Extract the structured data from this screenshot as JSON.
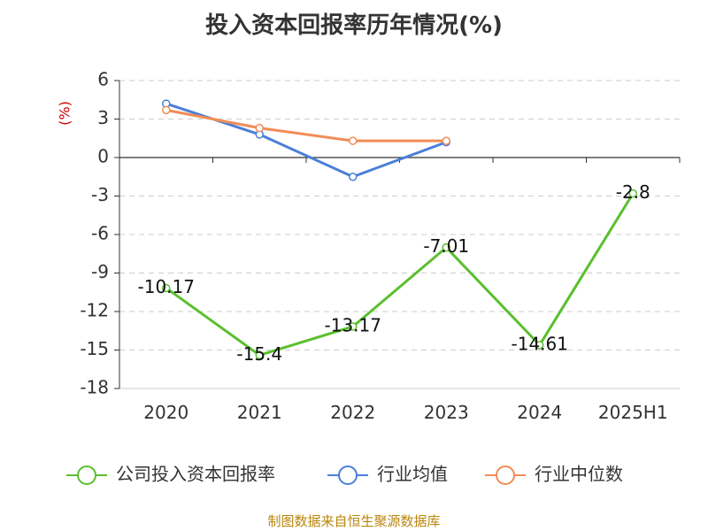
{
  "title": "投入资本回报率历年情况(%)",
  "source": "制图数据来自恒生聚源数据库",
  "chart_data": {
    "type": "line",
    "title": "投入资本回报率历年情况(%)",
    "ylabel": "(%)",
    "ylabel_color": "#cc0000",
    "categories": [
      "2020",
      "2021",
      "2022",
      "2023",
      "2024",
      "2025H1"
    ],
    "yticks": [
      6,
      3,
      0,
      -3,
      -6,
      -9,
      -12,
      -15,
      -18
    ],
    "ylim": [
      -18,
      6
    ],
    "grid": true,
    "legend_position": "bottom",
    "series": [
      {
        "name": "公司投入资本回报率",
        "color": "#5abf2e",
        "values": [
          -10.17,
          -15.4,
          -13.17,
          -7.01,
          -14.61,
          -2.8
        ],
        "labels": [
          "-10.17",
          "-15.4",
          "-13.17",
          "-7.01",
          "-14.61",
          "-2.8"
        ],
        "show_labels": true
      },
      {
        "name": "行业均值",
        "color": "#4a7fd8",
        "values": [
          4.2,
          1.8,
          -1.5,
          1.2,
          null,
          null
        ],
        "show_labels": false
      },
      {
        "name": "行业中位数",
        "color": "#f28c55",
        "values": [
          3.7,
          2.3,
          1.3,
          1.3,
          null,
          null
        ],
        "show_labels": false
      }
    ]
  }
}
